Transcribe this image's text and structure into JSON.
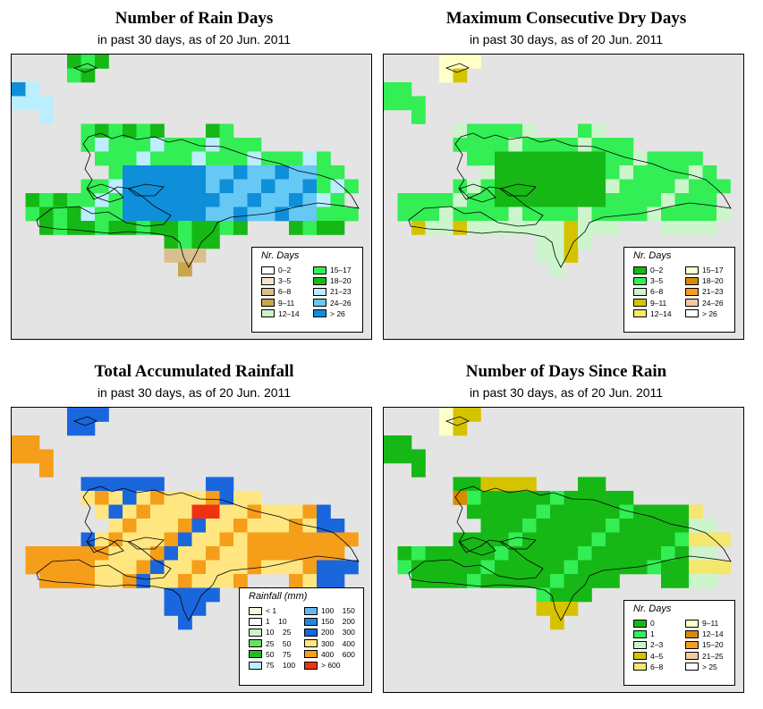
{
  "panels": [
    {
      "title": "Number of Rain Days",
      "subtitle": "in past 30 days, as of  20 Jun. 2011",
      "legend": {
        "title": "Nr. Days",
        "items": [
          {
            "label": "0–2",
            "color": "#ffffff"
          },
          {
            "label": "3–5",
            "color": "#f5e6c8"
          },
          {
            "label": "6–8",
            "color": "#d9bf8c"
          },
          {
            "label": "9–11",
            "color": "#c8a64a"
          },
          {
            "label": "12–14",
            "color": "#ccf5cc"
          },
          {
            "label": "15–17",
            "color": "#33ee55"
          },
          {
            "label": "18–20",
            "color": "#16b816"
          },
          {
            "label": "21–23",
            "color": "#bbeeff"
          },
          {
            "label": "24–26",
            "color": "#66c8f5"
          },
          {
            "label": "> 26",
            "color": "#0f8fd9"
          }
        ]
      }
    },
    {
      "title": "Maximum Consecutive Dry Days",
      "subtitle": "in past 30 days, as of  20 Jun. 2011",
      "legend": {
        "title": "Nr. Days",
        "items": [
          {
            "label": "0–2",
            "color": "#16b816"
          },
          {
            "label": "3–5",
            "color": "#33ee55"
          },
          {
            "label": "6–8",
            "color": "#ccf5cc"
          },
          {
            "label": "9–11",
            "color": "#d6c300"
          },
          {
            "label": "12–14",
            "color": "#f5e66e"
          },
          {
            "label": "15–17",
            "color": "#ffffc8"
          },
          {
            "label": "18–20",
            "color": "#d98a00"
          },
          {
            "label": "21–23",
            "color": "#f59e1a"
          },
          {
            "label": "24–26",
            "color": "#f5c8a0"
          },
          {
            "label": "> 26",
            "color": "#ffffff"
          }
        ]
      }
    },
    {
      "title": "Total Accumulated Rainfall",
      "subtitle": "in past 30 days, as of  20 Jun. 2011",
      "legend": {
        "title": "Rainfall (mm)",
        "items": [
          {
            "label": "< 1",
            "color": "#fff5dc"
          },
          {
            "label": "1    10",
            "color": "#ffffff"
          },
          {
            "label": "10    25",
            "color": "#ccf5cc"
          },
          {
            "label": "25    50",
            "color": "#66e066"
          },
          {
            "label": "50    75",
            "color": "#22bb22"
          },
          {
            "label": "75    100",
            "color": "#bbeeff"
          },
          {
            "label": "100    150",
            "color": "#66b8f0"
          },
          {
            "label": "150    200",
            "color": "#2288dd"
          },
          {
            "label": "200    300",
            "color": "#1a66dd"
          },
          {
            "label": "300    400",
            "color": "#ffe680"
          },
          {
            "label": "400    600",
            "color": "#f59e1a"
          },
          {
            "label": "> 600",
            "color": "#ee3311"
          }
        ]
      }
    },
    {
      "title": "Number of Days Since Rain",
      "subtitle": "in past 30 days, as of  20 Jun. 2011",
      "legend": {
        "title": "Nr. Days",
        "items": [
          {
            "label": "0",
            "color": "#16b816"
          },
          {
            "label": "1",
            "color": "#33ee55"
          },
          {
            "label": "2–3",
            "color": "#ccf5cc"
          },
          {
            "label": "4–5",
            "color": "#d6c300"
          },
          {
            "label": "6–8",
            "color": "#f5e66e"
          },
          {
            "label": "9–11",
            "color": "#ffffc8"
          },
          {
            "label": "12–14",
            "color": "#d98a00"
          },
          {
            "label": "15–20",
            "color": "#f59e1a"
          },
          {
            "label": "21–25",
            "color": "#f5c8a0"
          },
          {
            "label": "> 25",
            "color": "#ffffff"
          }
        ]
      }
    }
  ]
}
